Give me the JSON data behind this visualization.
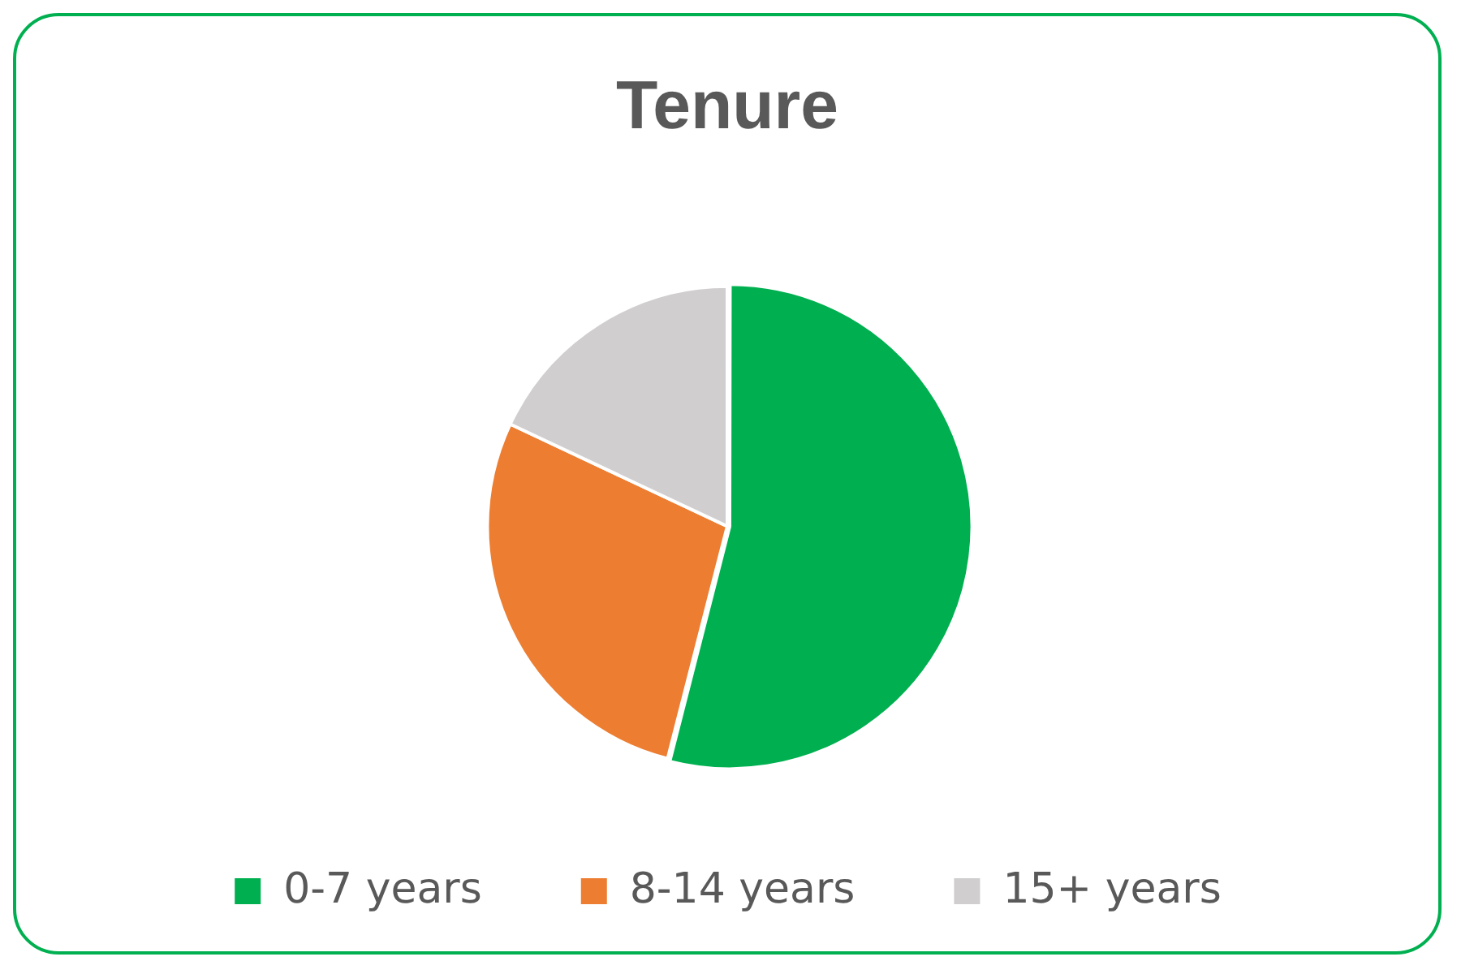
{
  "chart_data": {
    "type": "pie",
    "title": "Tenure",
    "categories": [
      "0-7 years",
      "8-14 years",
      "15+ years"
    ],
    "values": [
      54,
      28,
      18
    ],
    "colors": [
      "#00b050",
      "#ed7d31",
      "#d0cece"
    ],
    "legend": "bottom"
  }
}
